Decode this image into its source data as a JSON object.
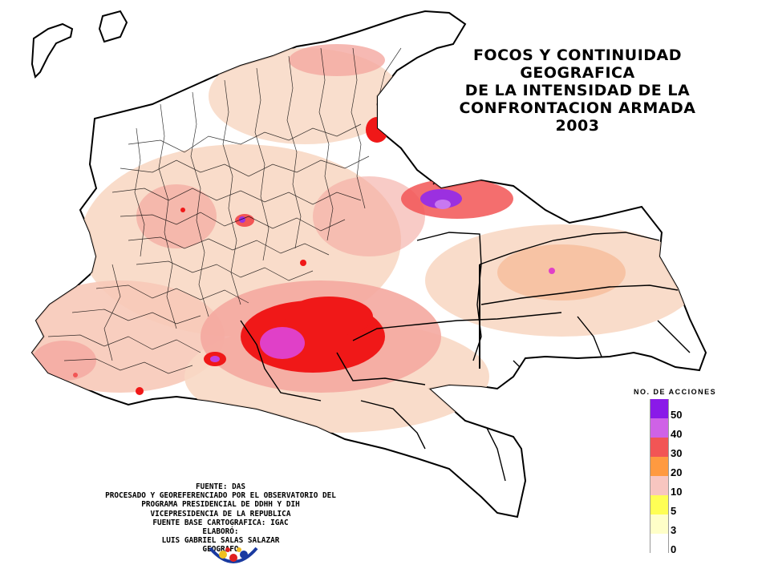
{
  "title": {
    "lines": [
      "FOCOS Y CONTINUIDAD",
      "GEOGRAFICA",
      "DE LA INTENSIDAD DE LA",
      "CONFRONTACION ARMADA",
      "2003"
    ]
  },
  "legend": {
    "title": "NO. DE ACCIONES",
    "entries": [
      {
        "label": "50",
        "color": "#8a1ae8"
      },
      {
        "label": "40",
        "color": "#cf62e6"
      },
      {
        "label": "30",
        "color": "#f25555"
      },
      {
        "label": "20",
        "color": "#ff9a40"
      },
      {
        "label": "10",
        "color": "#f8c6c0"
      },
      {
        "label": "5",
        "color": "#ffff55"
      },
      {
        "label": "3",
        "color": "#ffffc8"
      },
      {
        "label": "0",
        "color": "#ffffff"
      }
    ]
  },
  "credits": {
    "lines": [
      "FUENTE: DAS",
      "PROCESADO Y GEOREFERENCIADO POR EL OBSERVATORIO DEL",
      "PROGRAMA PRESIDENCIAL DE DDHH Y DIH",
      "VICEPRESIDENCIA DE LA REPUBLICA",
      "FUENTE BASE CARTOGRAFICA: IGAC",
      "ELABORÓ:",
      "LUIS GABRIEL SALAS SALAZAR",
      "GEOGRAFO"
    ]
  },
  "colors": {
    "low_shade": "#f8d8c4",
    "light_pink": "#f4a8a0",
    "red": "#f01818",
    "magenta": "#e040c8",
    "purple": "#9b30e0",
    "outline": "#000000"
  }
}
